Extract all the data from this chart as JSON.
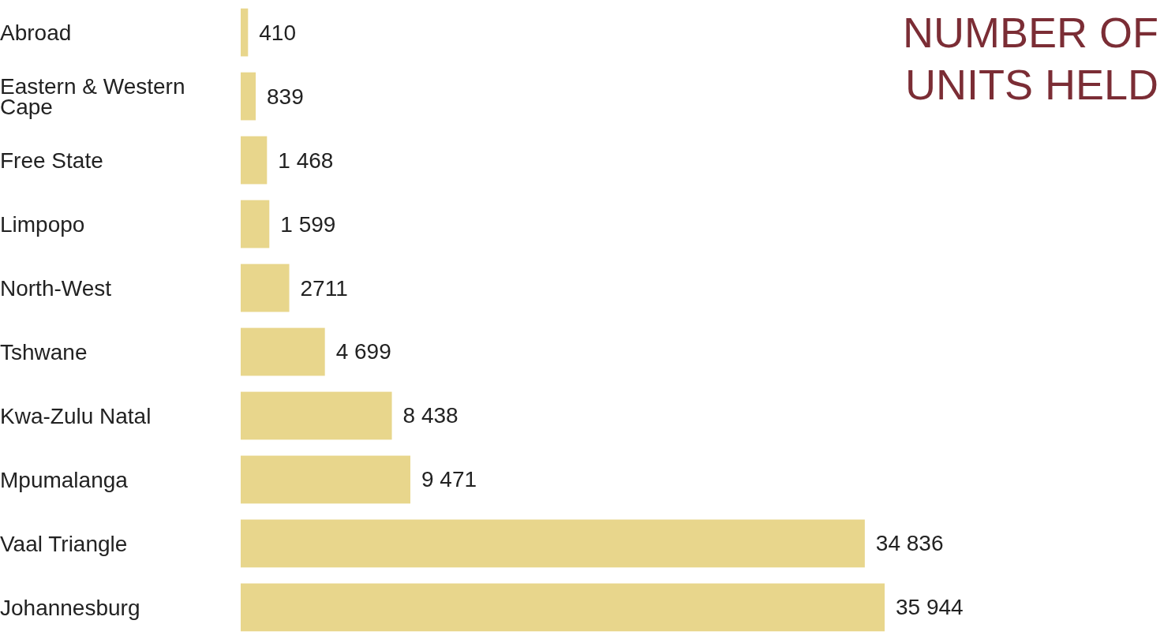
{
  "chart_data": {
    "type": "bar",
    "orientation": "horizontal",
    "title": "NUMBER OF UNITS HELD",
    "categories": [
      "Abroad",
      "Eastern & Western Cape",
      "Free State",
      "Limpopo",
      "North-West",
      "Tshwane",
      "Kwa-Zulu Natal",
      "Mpumalanga",
      "Vaal Triangle",
      "Johannesburg"
    ],
    "values": [
      410,
      839,
      1468,
      1599,
      2711,
      4699,
      8438,
      9471,
      34836,
      35944
    ],
    "value_labels": [
      "410",
      "839",
      "1 468",
      "1 599",
      "2711",
      "4 699",
      "8 438",
      "9 471",
      "34 836",
      "35 944"
    ],
    "color": "#e8d68c"
  }
}
